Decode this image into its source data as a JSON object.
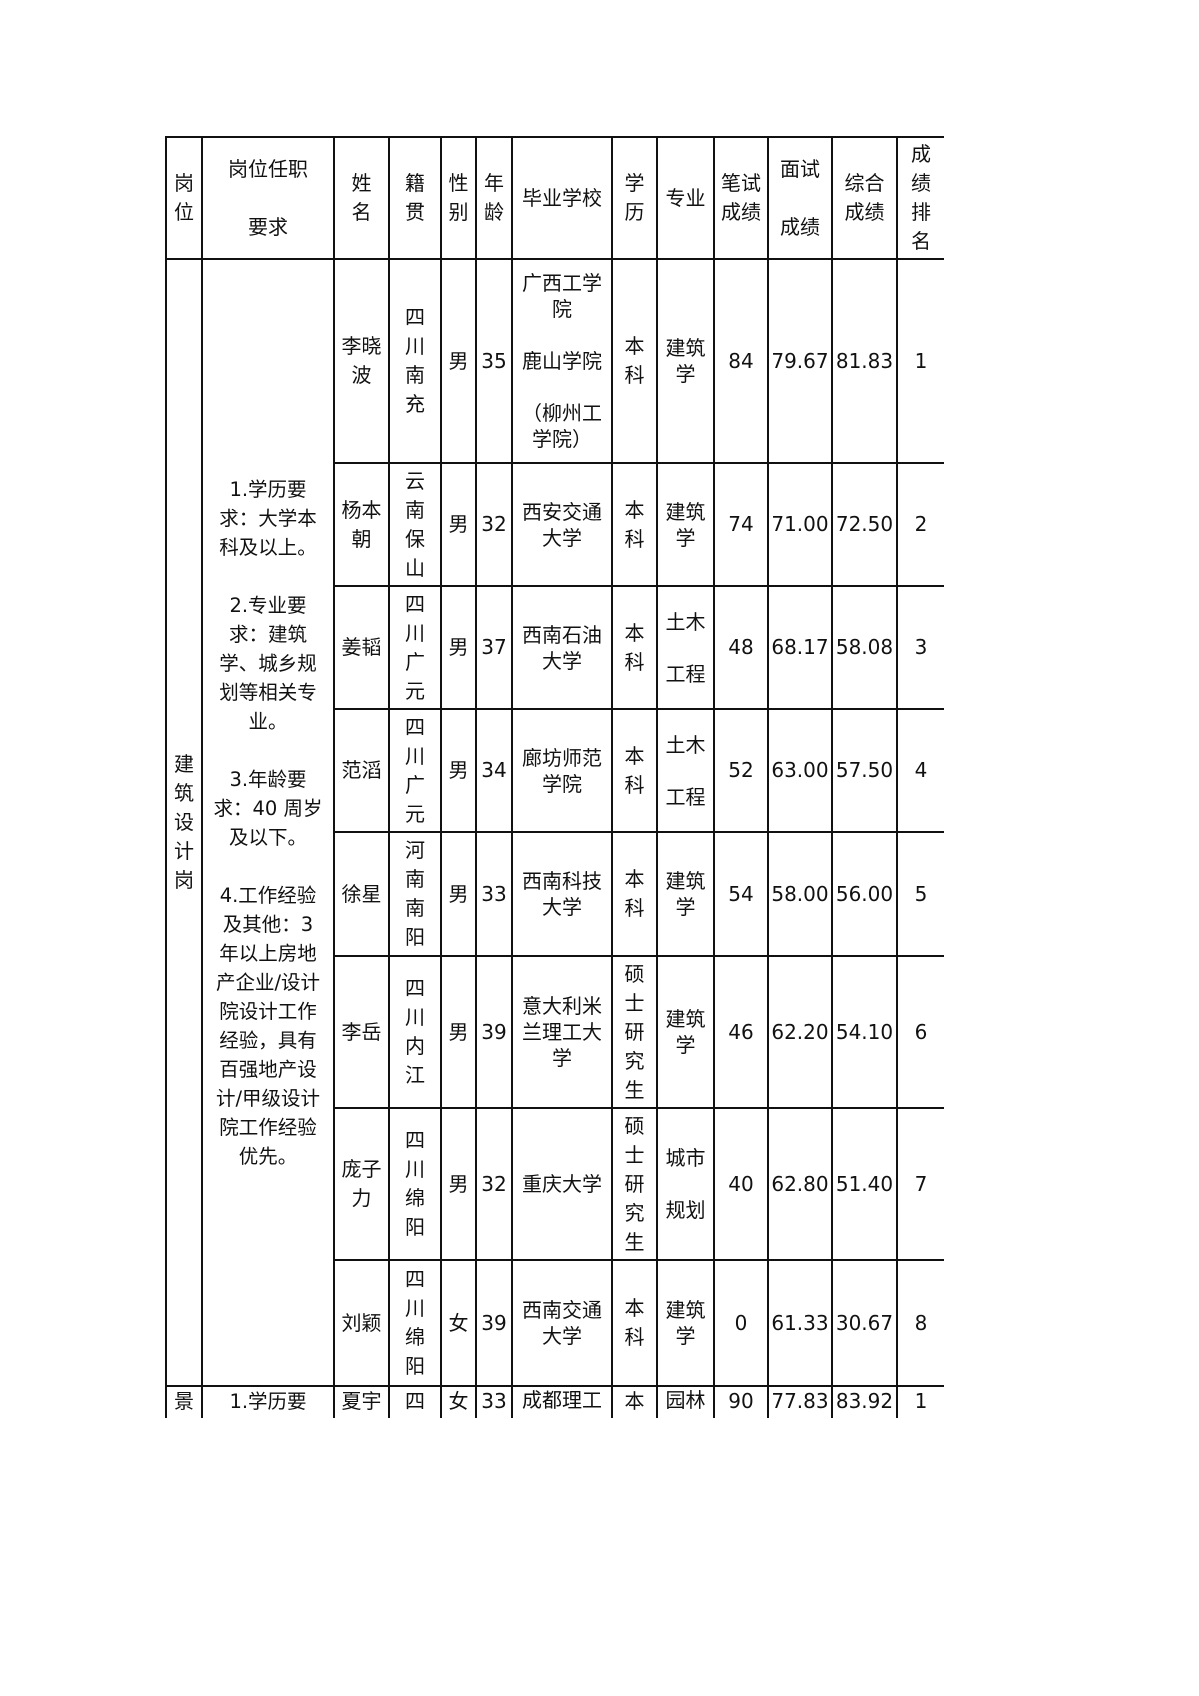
{
  "headers": [
    "岗\n位",
    "岗位任职\n\n要求",
    "姓\n名",
    "籍\n贯",
    "性\n别",
    "年\n龄",
    "毕业学校",
    "学\n历",
    "专业",
    "笔试\n成绩",
    "面试\n\n成绩",
    "综合\n成绩",
    "成\n绩\n排\n名"
  ],
  "group1": {
    "post": "建\n筑\n设\n计\n岗",
    "requirements": "1.学历要\n求：大学本\n科及以上。\n\n2.专业要\n求：建筑\n学、城乡规\n划等相关专\n业。\n\n3.年龄要\n求：40 周岁\n及以下。\n\n4.工作经验\n及其他：3\n年以上房地\n产企业/设计\n院设计工作\n经验，具有\n百强地产设\n计/甲级设计\n院工作经验\n优先。",
    "rows": [
      {
        "name": "李晓\n波",
        "origin": "四\n川\n南\n充",
        "gender": "男",
        "age": "35",
        "school": "广西工学\n院\n\n鹿山学院\n\n（柳州工\n学院）",
        "degree": "本\n科",
        "major": "建筑\n学",
        "written": "84",
        "interview": "79.67",
        "total": "81.83",
        "rank": "1"
      },
      {
        "name": "杨本\n朝",
        "origin": "云\n南\n保\n山",
        "gender": "男",
        "age": "32",
        "school": "西安交通\n大学",
        "degree": "本\n科",
        "major": "建筑\n学",
        "written": "74",
        "interview": "71.00",
        "total": "72.50",
        "rank": "2"
      },
      {
        "name": "姜韬",
        "origin": "四\n川\n广\n元",
        "gender": "男",
        "age": "37",
        "school": "西南石油\n大学",
        "degree": "本\n科",
        "major": "土木\n\n工程",
        "written": "48",
        "interview": "68.17",
        "total": "58.08",
        "rank": "3"
      },
      {
        "name": "范滔",
        "origin": "四\n川\n广\n元",
        "gender": "男",
        "age": "34",
        "school": "廊坊师范\n学院",
        "degree": "本\n科",
        "major": "土木\n\n工程",
        "written": "52",
        "interview": "63.00",
        "total": "57.50",
        "rank": "4"
      },
      {
        "name": "徐星",
        "origin": "河\n南\n南\n阳",
        "gender": "男",
        "age": "33",
        "school": "西南科技\n大学",
        "degree": "本\n科",
        "major": "建筑\n学",
        "written": "54",
        "interview": "58.00",
        "total": "56.00",
        "rank": "5"
      },
      {
        "name": "李岳",
        "origin": "四\n川\n内\n江",
        "gender": "男",
        "age": "39",
        "school": "意大利米\n兰理工大\n学",
        "degree": "硕\n士\n研\n究\n生",
        "major": "建筑\n学",
        "written": "46",
        "interview": "62.20",
        "total": "54.10",
        "rank": "6"
      },
      {
        "name": "庞子\n力",
        "origin": "四\n川\n绵\n阳",
        "gender": "男",
        "age": "32",
        "school": "重庆大学",
        "degree": "硕\n士\n研\n究\n生",
        "major": "城市\n\n规划",
        "written": "40",
        "interview": "62.80",
        "total": "51.40",
        "rank": "7"
      },
      {
        "name": "刘颖",
        "origin": "四\n川\n绵\n阳",
        "gender": "女",
        "age": "39",
        "school": "西南交通\n大学",
        "degree": "本\n科",
        "major": "建筑\n学",
        "written": "0",
        "interview": "61.33",
        "total": "30.67",
        "rank": "8"
      }
    ]
  },
  "group2": {
    "post": "景",
    "requirements": "1.学历要",
    "rows": [
      {
        "name": "夏宇",
        "origin": "四",
        "gender": "女",
        "age": "33",
        "school": "成都理工",
        "degree": "本",
        "major": "园林",
        "written": "90",
        "interview": "77.83",
        "total": "83.92",
        "rank": "1"
      }
    ]
  }
}
